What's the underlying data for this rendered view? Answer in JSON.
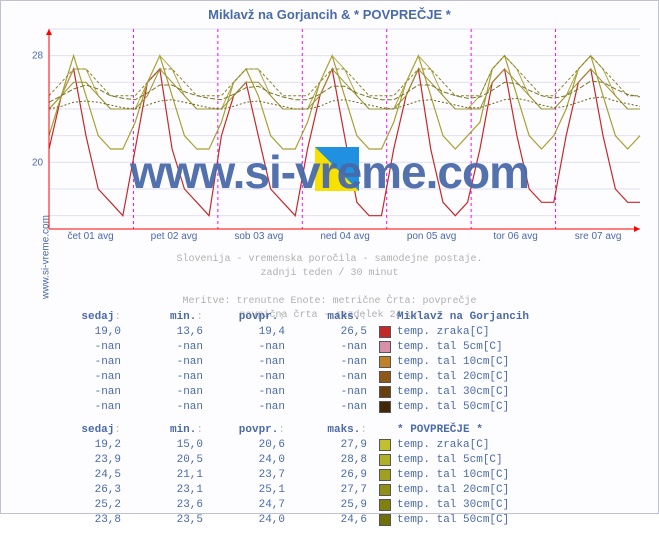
{
  "title": "Miklavž na Gorjancih & * POVPREČJE *",
  "site_label": "www.si-vreme.com",
  "watermark": "www.si-vreme.com",
  "info_lines": [
    "Slovenija - vremenska poročila - samodejne postaje.",
    "zadnji teden / 30 minut",
    "",
    "Meritve: trenutne  Enote: metrične  Črta: povprečje",
    "navpična črta - razdelek 24 ur"
  ],
  "chart": {
    "type": "line",
    "ylim": [
      15,
      30
    ],
    "yticks": [
      20,
      28
    ],
    "background_color": "#fdfdff",
    "grid_color": "#e0e0f0",
    "day_divider_color": "#ff00ff",
    "day_divider_dash": "3,3",
    "axis_color": "#ff0000",
    "x_labels": [
      "čet 01 avg",
      "pet 02 avg",
      "sob 03 avg",
      "ned 04 avg",
      "pon 05 avg",
      "tor 06 avg",
      "sre 07 avg"
    ],
    "series": [
      {
        "name": "M-zraka",
        "color": "#c62828",
        "width": 1.2,
        "points": [
          21,
          25,
          27,
          22,
          18,
          17,
          16,
          21,
          26,
          27,
          21,
          18,
          17,
          16,
          22,
          25,
          26,
          22,
          18,
          17,
          16,
          21,
          25,
          27,
          22,
          17,
          16,
          16,
          21,
          25,
          27,
          21,
          17,
          16,
          17,
          21,
          26,
          27,
          22,
          18,
          17,
          17,
          22,
          26,
          27,
          22,
          18,
          17,
          17
        ]
      },
      {
        "name": "P-zraka",
        "color": "#a8a030",
        "width": 1.2,
        "points": [
          22,
          25,
          28,
          25,
          22,
          21,
          21,
          23,
          26,
          28,
          25,
          22,
          21,
          21,
          23,
          26,
          27,
          25,
          22,
          21,
          21,
          23,
          26,
          28,
          25,
          22,
          21,
          21,
          23,
          26,
          28,
          25,
          22,
          21,
          22,
          23,
          27,
          28,
          25,
          22,
          21,
          22,
          24,
          27,
          28,
          25,
          22,
          21,
          22
        ]
      },
      {
        "name": "P-5",
        "color": "#b0a840",
        "width": 1.0,
        "points": [
          24,
          25,
          27,
          27,
          25,
          24,
          24,
          24,
          26,
          28,
          27,
          25,
          24,
          24,
          24,
          26,
          27,
          27,
          25,
          24,
          24,
          24,
          26,
          28,
          27,
          25,
          24,
          24,
          24,
          26,
          28,
          27,
          25,
          24,
          24,
          25,
          27,
          28,
          27,
          25,
          24,
          24,
          25,
          27,
          28,
          27,
          25,
          24,
          24
        ]
      },
      {
        "name": "P-10",
        "color": "#9a9230",
        "width": 1.0,
        "points": [
          24,
          25,
          26,
          26,
          25,
          24,
          24,
          24,
          25,
          27,
          26,
          25,
          24,
          24,
          24,
          25,
          26,
          26,
          25,
          24,
          24,
          24,
          25,
          27,
          26,
          25,
          24,
          24,
          24,
          25,
          27,
          26,
          25,
          24,
          24,
          24,
          26,
          27,
          26,
          25,
          24,
          24,
          25,
          26,
          27,
          26,
          25,
          24,
          24
        ]
      },
      {
        "name": "P-20",
        "color": "#8a8428",
        "width": 1.0,
        "dash": "3,2",
        "points": [
          25,
          26,
          27,
          27,
          26,
          25,
          25,
          25,
          26,
          27,
          27,
          26,
          25,
          25,
          25,
          26,
          27,
          27,
          26,
          25,
          25,
          25,
          26,
          27,
          27,
          26,
          25,
          25,
          25,
          26,
          27,
          27,
          26,
          25,
          25,
          25,
          27,
          28,
          27,
          26,
          25,
          25,
          26,
          27,
          28,
          27,
          26,
          25,
          25
        ]
      },
      {
        "name": "P-30",
        "color": "#7a7420",
        "width": 1.0,
        "dash": "5,2",
        "points": [
          24.5,
          25,
          25.5,
          25.8,
          25.5,
          25,
          24.8,
          24.7,
          25.2,
          25.8,
          25.8,
          25.3,
          25,
          24.8,
          24.7,
          25.1,
          25.6,
          25.7,
          25.2,
          24.9,
          24.7,
          24.7,
          25.1,
          25.7,
          25.7,
          25.2,
          24.9,
          24.7,
          24.7,
          25.2,
          25.8,
          25.8,
          25.3,
          25,
          24.8,
          24.9,
          25.4,
          26,
          25.9,
          25.4,
          25,
          24.8,
          25,
          25.5,
          26.1,
          26,
          25.5,
          25.1,
          24.9
        ]
      },
      {
        "name": "P-50",
        "color": "#6a6418",
        "width": 1.0,
        "dash": "2,2",
        "points": [
          24,
          24.2,
          24.5,
          24.6,
          24.5,
          24.3,
          24.1,
          24,
          24.3,
          24.6,
          24.7,
          24.5,
          24.3,
          24.1,
          24,
          24.2,
          24.5,
          24.6,
          24.4,
          24.2,
          24,
          24,
          24.2,
          24.6,
          24.7,
          24.5,
          24.3,
          24.1,
          24,
          24.3,
          24.6,
          24.7,
          24.5,
          24.3,
          24.1,
          24.1,
          24.4,
          24.7,
          24.8,
          24.6,
          24.3,
          24.1,
          24.2,
          24.5,
          24.8,
          24.9,
          24.6,
          24.4,
          24.2
        ]
      }
    ]
  },
  "tables": [
    {
      "headers": [
        "sedaj",
        "min.",
        "povpr.",
        "maks."
      ],
      "group_title": "Miklavž na Gorjancih",
      "rows": [
        {
          "vals": [
            "19,0",
            "13,6",
            "19,4",
            "26,5"
          ],
          "swatch": "#c62828",
          "label": "temp. zraka[C]"
        },
        {
          "vals": [
            "-nan",
            "-nan",
            "-nan",
            "-nan"
          ],
          "swatch": "#d890a8",
          "label": "temp. tal  5cm[C]"
        },
        {
          "vals": [
            "-nan",
            "-nan",
            "-nan",
            "-nan"
          ],
          "swatch": "#c08028",
          "label": "temp. tal 10cm[C]"
        },
        {
          "vals": [
            "-nan",
            "-nan",
            "-nan",
            "-nan"
          ],
          "swatch": "#905818",
          "label": "temp. tal 20cm[C]"
        },
        {
          "vals": [
            "-nan",
            "-nan",
            "-nan",
            "-nan"
          ],
          "swatch": "#684010",
          "label": "temp. tal 30cm[C]"
        },
        {
          "vals": [
            "-nan",
            "-nan",
            "-nan",
            "-nan"
          ],
          "swatch": "#402808",
          "label": "temp. tal 50cm[C]"
        }
      ]
    },
    {
      "headers": [
        "sedaj",
        "min.",
        "povpr.",
        "maks."
      ],
      "group_title": "* POVPREČJE *",
      "rows": [
        {
          "vals": [
            "19,2",
            "15,0",
            "20,6",
            "27,9"
          ],
          "swatch": "#c0c030",
          "label": "temp. zraka[C]"
        },
        {
          "vals": [
            "23,9",
            "20,5",
            "24,0",
            "28,8"
          ],
          "swatch": "#b0b028",
          "label": "temp. tal  5cm[C]"
        },
        {
          "vals": [
            "24,5",
            "21,1",
            "23,7",
            "26,9"
          ],
          "swatch": "#a0a020",
          "label": "temp. tal 10cm[C]"
        },
        {
          "vals": [
            "26,3",
            "23,1",
            "25,1",
            "27,7"
          ],
          "swatch": "#909018",
          "label": "temp. tal 20cm[C]"
        },
        {
          "vals": [
            "25,2",
            "23,6",
            "24,7",
            "25,9"
          ],
          "swatch": "#808010",
          "label": "temp. tal 30cm[C]"
        },
        {
          "vals": [
            "23,8",
            "23,5",
            "24,0",
            "24,6"
          ],
          "swatch": "#707008",
          "label": "temp. tal 50cm[C]"
        }
      ]
    }
  ]
}
